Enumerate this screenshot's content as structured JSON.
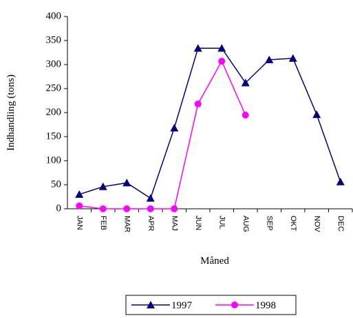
{
  "chart_data": {
    "type": "line",
    "x_label": "Måned",
    "y_label": "Indhandling (tons)",
    "categories": [
      "JAN",
      "FEB",
      "MAR",
      "APR",
      "MAJ",
      "JUN",
      "JUL",
      "AUG",
      "SEP",
      "OKT",
      "NOV",
      "DEC"
    ],
    "series": [
      {
        "name": "1997",
        "color": "#000080",
        "marker": "triangle",
        "values": [
          30,
          46,
          54,
          22,
          168,
          334,
          334,
          262,
          310,
          313,
          196,
          56
        ]
      },
      {
        "name": "1998",
        "color": "#ff00ff",
        "marker": "circle",
        "values": [
          6,
          0,
          0,
          0,
          0,
          218,
          307,
          195,
          null,
          null,
          null,
          null
        ]
      }
    ],
    "ylim": [
      0,
      400
    ],
    "yticks": [
      0,
      50,
      100,
      150,
      200,
      250,
      300,
      350,
      400
    ],
    "grid": false,
    "legend": "bottom"
  }
}
